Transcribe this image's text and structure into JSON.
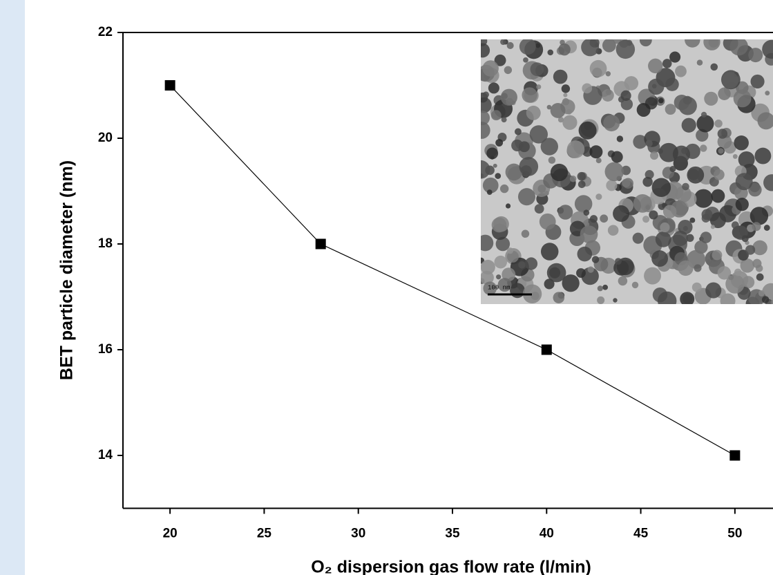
{
  "chart_data": {
    "type": "line",
    "y_label": "BET particle diameter (nm)",
    "x_label": "O₂ dispersion gas flow rate (l/min)",
    "x": [
      20,
      28,
      40,
      50
    ],
    "series": [
      {
        "color": "#000000",
        "values": [
          21,
          18,
          16,
          14
        ]
      }
    ],
    "xlim": [
      17.5,
      52.5
    ],
    "xticks": [
      20,
      25,
      30,
      35,
      40,
      45,
      50
    ],
    "ylim": [
      13,
      22
    ],
    "yticks": [
      14,
      16,
      18,
      20,
      22
    ],
    "annotations": [
      "100 nm"
    ]
  }
}
